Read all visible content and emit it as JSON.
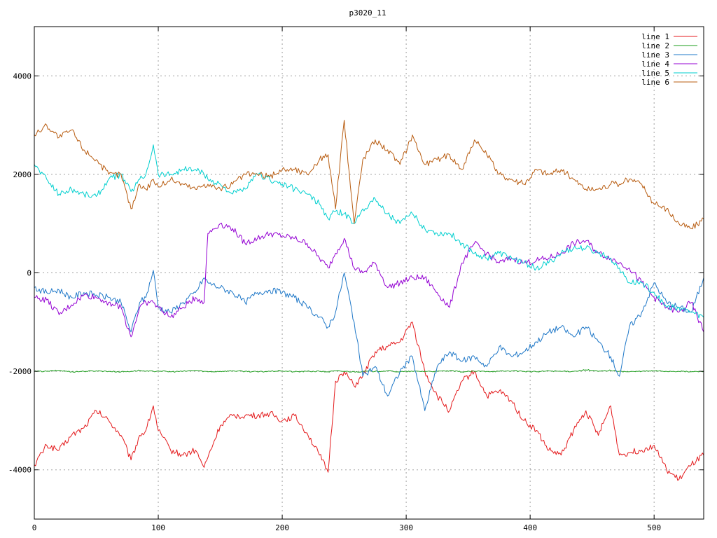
{
  "chart_data": {
    "type": "line",
    "title": "p3020_11",
    "xlabel": "",
    "ylabel": "",
    "xlim": [
      0,
      540
    ],
    "ylim": [
      -5000,
      5000
    ],
    "x_ticks": [
      0,
      100,
      200,
      300,
      400,
      500
    ],
    "y_ticks": [
      -4000,
      -2000,
      0,
      2000,
      4000
    ],
    "x_tick_labels": [
      "0",
      "100",
      "200",
      "300",
      "400",
      "500"
    ],
    "y_tick_labels": [
      "-4000",
      "-2000",
      "0",
      "2000",
      "4000"
    ],
    "grid": true,
    "legend_position": "top-right",
    "x": [
      0,
      10,
      20,
      30,
      40,
      50,
      60,
      70,
      78,
      85,
      90,
      96,
      100,
      110,
      120,
      130,
      137,
      140,
      150,
      160,
      170,
      180,
      190,
      200,
      210,
      220,
      230,
      237,
      243,
      250,
      258,
      265,
      275,
      285,
      295,
      305,
      315,
      325,
      335,
      345,
      355,
      365,
      375,
      385,
      395,
      405,
      415,
      425,
      435,
      445,
      455,
      465,
      472,
      480,
      490,
      500,
      510,
      520,
      530,
      540
    ],
    "series": [
      {
        "name": "line 1",
        "color": "#e41a1c",
        "values": [
          -3900,
          -3500,
          -3600,
          -3300,
          -3150,
          -2800,
          -3000,
          -3300,
          -3800,
          -3300,
          -3200,
          -2700,
          -3200,
          -3600,
          -3700,
          -3600,
          -3950,
          -3750,
          -3100,
          -2900,
          -2900,
          -2900,
          -2850,
          -3000,
          -2900,
          -3250,
          -3700,
          -4050,
          -2200,
          -2000,
          -2300,
          -2100,
          -1600,
          -1500,
          -1400,
          -1000,
          -2000,
          -2500,
          -2800,
          -2200,
          -2000,
          -2500,
          -2400,
          -2600,
          -3000,
          -3200,
          -3600,
          -3700,
          -3200,
          -2800,
          -3300,
          -2700,
          -3700,
          -3650,
          -3600,
          -3500,
          -4000,
          -4200,
          -3900,
          -3700
        ]
      },
      {
        "name": "line 2",
        "color": "#1b9e1b",
        "values": [
          -2000,
          -2000,
          -1980,
          -2010,
          -2000,
          -1990,
          -2000,
          -2010,
          -2000,
          -1980,
          -2000,
          -2000,
          -1990,
          -2010,
          -2000,
          -1980,
          -2000,
          -2010,
          -2000,
          -1990,
          -2000,
          -2010,
          -2000,
          -1990,
          -2010,
          -2000,
          -2000,
          -2010,
          -1990,
          -2000,
          -2010,
          -2000,
          -2000,
          -1990,
          -2010,
          -2000,
          -2000,
          -2000,
          -1990,
          -2010,
          -2000,
          -2000,
          -2000,
          -1990,
          -2000,
          -2010,
          -1990,
          -2000,
          -2000,
          -1970,
          -2000,
          -1980,
          -2000,
          -2010,
          -2000,
          -1990,
          -2000,
          -2000,
          -2010,
          -2000
        ]
      },
      {
        "name": "line 3",
        "color": "#1f78c8",
        "values": [
          -300,
          -400,
          -350,
          -500,
          -400,
          -450,
          -500,
          -600,
          -1200,
          -600,
          -500,
          50,
          -700,
          -800,
          -600,
          -400,
          -100,
          -200,
          -300,
          -400,
          -600,
          -400,
          -350,
          -400,
          -500,
          -700,
          -900,
          -1100,
          -800,
          0,
          -1000,
          -2100,
          -1900,
          -2500,
          -2000,
          -1700,
          -2800,
          -1900,
          -1600,
          -1800,
          -1700,
          -1900,
          -1500,
          -1700,
          -1600,
          -1400,
          -1200,
          -1100,
          -1300,
          -1100,
          -1400,
          -1700,
          -2100,
          -1100,
          -800,
          -200,
          -600,
          -700,
          -800,
          -100
        ]
      },
      {
        "name": "line 4",
        "color": "#9400d3",
        "values": [
          -500,
          -550,
          -850,
          -650,
          -450,
          -500,
          -600,
          -700,
          -1300,
          -700,
          -600,
          -600,
          -700,
          -900,
          -700,
          -500,
          -600,
          800,
          1000,
          900,
          600,
          700,
          800,
          750,
          700,
          600,
          300,
          100,
          400,
          700,
          100,
          0,
          200,
          -300,
          -200,
          -100,
          -100,
          -400,
          -700,
          200,
          600,
          400,
          200,
          300,
          200,
          250,
          300,
          400,
          600,
          650,
          400,
          300,
          200,
          100,
          -200,
          -500,
          -700,
          -800,
          -600,
          -1200
        ]
      },
      {
        "name": "line 5",
        "color": "#00cfcf",
        "values": [
          2200,
          1900,
          1600,
          1700,
          1600,
          1550,
          1900,
          2000,
          1650,
          1900,
          2000,
          2600,
          2000,
          2000,
          2100,
          2100,
          2000,
          1900,
          1800,
          1600,
          1700,
          2000,
          1900,
          1800,
          1700,
          1600,
          1400,
          1100,
          1250,
          1200,
          1000,
          1300,
          1500,
          1200,
          1000,
          1200,
          900,
          800,
          800,
          600,
          400,
          300,
          400,
          300,
          200,
          100,
          200,
          400,
          500,
          500,
          400,
          300,
          100,
          -200,
          -200,
          -400,
          -700,
          -700,
          -800,
          -900
        ]
      },
      {
        "name": "line 6",
        "color": "#b85c10",
        "values": [
          2800,
          3000,
          2750,
          2900,
          2500,
          2300,
          2000,
          2000,
          1300,
          1800,
          1700,
          1900,
          1750,
          1900,
          1800,
          1700,
          1800,
          1800,
          1700,
          1800,
          2000,
          2000,
          1950,
          2100,
          2100,
          2000,
          2300,
          2400,
          1300,
          3100,
          1000,
          2300,
          2700,
          2500,
          2200,
          2800,
          2200,
          2300,
          2400,
          2100,
          2700,
          2400,
          2000,
          1900,
          1800,
          2100,
          2000,
          2100,
          1900,
          1700,
          1700,
          1800,
          1800,
          1900,
          1800,
          1400,
          1300,
          1000,
          900,
          1100
        ]
      }
    ]
  }
}
